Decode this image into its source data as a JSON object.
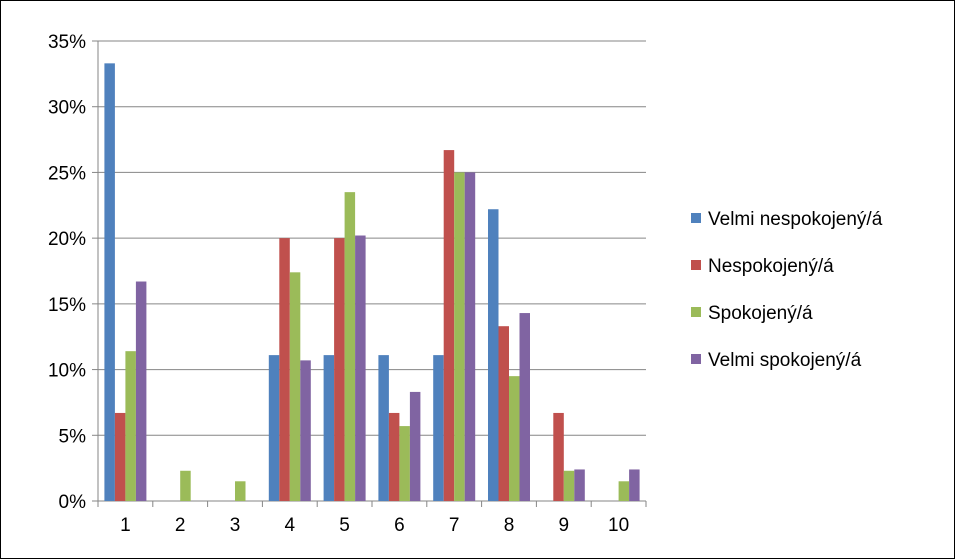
{
  "chart_data": {
    "type": "bar",
    "title": "",
    "xlabel": "",
    "ylabel": "",
    "categories": [
      "1",
      "2",
      "3",
      "4",
      "5",
      "6",
      "7",
      "8",
      "9",
      "10"
    ],
    "ylim": [
      0,
      0.35
    ],
    "y_ticks": [
      "0%",
      "5%",
      "10%",
      "15%",
      "20%",
      "25%",
      "30%",
      "35%"
    ],
    "grid": "horizontal",
    "legend_position": "right",
    "series": [
      {
        "name": "Velmi nespokojený/á",
        "color": "#4F81BD",
        "values": [
          0.333,
          0,
          0,
          0.111,
          0.111,
          0.111,
          0.111,
          0.222,
          0,
          0
        ]
      },
      {
        "name": "Nespokojený/á",
        "color": "#C0504D",
        "values": [
          0.067,
          0,
          0,
          0.2,
          0.2,
          0.067,
          0.267,
          0.133,
          0.067,
          0
        ]
      },
      {
        "name": "Spokojený/á",
        "color": "#9BBB59",
        "values": [
          0.114,
          0.023,
          0.015,
          0.174,
          0.235,
          0.057,
          0.25,
          0.095,
          0.023,
          0.015
        ]
      },
      {
        "name": "Velmi spokojený/á",
        "color": "#8064A2",
        "values": [
          0.167,
          0,
          0,
          0.107,
          0.202,
          0.083,
          0.25,
          0.143,
          0.024,
          0.024
        ]
      }
    ]
  }
}
